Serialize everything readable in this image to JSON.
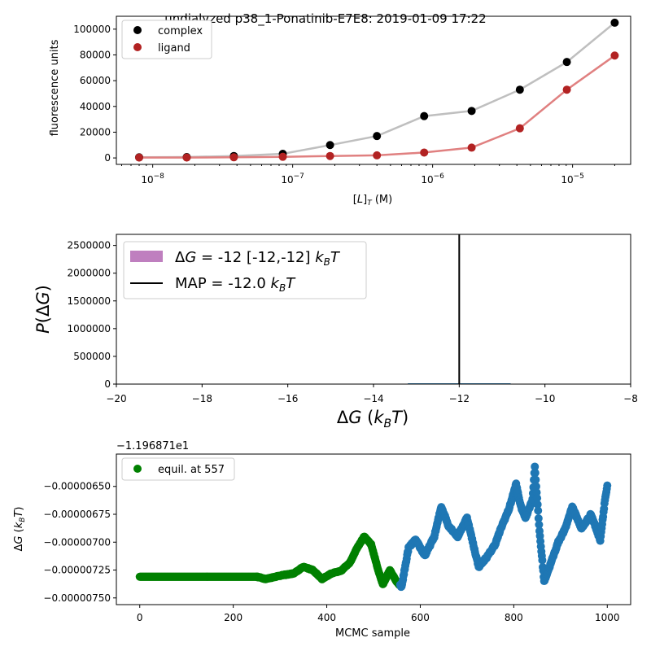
{
  "chart_data": [
    {
      "type": "line",
      "title": "undialyzed p38_1-Ponatinib-E7E8: 2019-01-09 17:22",
      "xlabel": "[L]T (M)",
      "ylabel": "fluorescence units",
      "xscale": "log",
      "xlim": [
        5.5e-09,
        2.6e-05
      ],
      "ylim": [
        -5000,
        110000
      ],
      "x_ticks": [
        {
          "v": 1e-08,
          "label": "10-8"
        },
        {
          "v": 1e-07,
          "label": "10-7"
        },
        {
          "v": 1e-06,
          "label": "10-6"
        },
        {
          "v": 1e-05,
          "label": "10-5"
        }
      ],
      "y_ticks": [
        0,
        20000,
        40000,
        60000,
        80000,
        100000
      ],
      "legend": [
        "complex",
        "ligand"
      ],
      "legend_position": "top-left",
      "x": [
        8e-09,
        1.75e-08,
        3.8e-08,
        8.5e-08,
        1.85e-07,
        4e-07,
        8.7e-07,
        1.9e-06,
        4.2e-06,
        9.1e-06,
        2e-05
      ],
      "series": [
        {
          "name": "complex",
          "color": "#000000",
          "line_color": "#bfbfbf",
          "values": [
            500,
            700,
            1500,
            3200,
            10000,
            17000,
            32500,
            36500,
            53000,
            74500,
            105000
          ]
        },
        {
          "name": "ligand",
          "color": "#b22222",
          "line_color": "#e08080",
          "values": [
            300,
            300,
            500,
            900,
            1500,
            2000,
            4200,
            8000,
            23000,
            53000,
            79500
          ]
        }
      ]
    },
    {
      "type": "area",
      "title": "",
      "xlabel": "ΔG (kBT)",
      "ylabel": "P(ΔG)",
      "xlim": [
        -20,
        -8
      ],
      "ylim": [
        0,
        2700000
      ],
      "x_ticks": [
        -20,
        -18,
        -16,
        -14,
        -12,
        -10,
        -8
      ],
      "y_ticks": [
        0,
        500000,
        1000000,
        1500000,
        2000000,
        2500000
      ],
      "posterior_range": [
        -13.2,
        -10.8
      ],
      "map_value": -12.0,
      "legend": [
        {
          "label": "ΔG =  -12 [-12,-12] kBT",
          "color": "#bf7fbf"
        },
        {
          "label": "MAP = -12.0 kBT",
          "color": "#000000"
        }
      ],
      "legend_position": "top-left"
    },
    {
      "type": "scatter",
      "title": "",
      "offset_label": "−1.196871e1",
      "xlabel": "MCMC sample",
      "ylabel": "ΔG (kBT)",
      "xlim": [
        -50,
        1050
      ],
      "ylim": [
        -7.56e-06,
        -6.21e-06
      ],
      "x_ticks": [
        0,
        200,
        400,
        600,
        800,
        1000
      ],
      "y_ticks": [
        {
          "v": -6.5e-06,
          "label": "−0.00000650"
        },
        {
          "v": -6.75e-06,
          "label": "−0.00000675"
        },
        {
          "v": -7e-06,
          "label": "−0.00000700"
        },
        {
          "v": -7.25e-06,
          "label": "−0.00000725"
        },
        {
          "v": -7.5e-06,
          "label": "−0.00000750"
        }
      ],
      "equil_index": 557,
      "legend": [
        "equil. at 557"
      ],
      "legend_position": "top-left",
      "colors": {
        "equil": "#008000",
        "post": "#1f77b4"
      },
      "trace_keypoints": [
        [
          0,
          -7.31e-06
        ],
        [
          150,
          -7.31e-06
        ],
        [
          250,
          -7.31e-06
        ],
        [
          270,
          -7.33e-06
        ],
        [
          300,
          -7.3e-06
        ],
        [
          330,
          -7.28e-06
        ],
        [
          350,
          -7.22e-06
        ],
        [
          370,
          -7.25e-06
        ],
        [
          390,
          -7.33e-06
        ],
        [
          410,
          -7.28e-06
        ],
        [
          430,
          -7.26e-06
        ],
        [
          450,
          -7.18e-06
        ],
        [
          465,
          -7.05e-06
        ],
        [
          480,
          -6.95e-06
        ],
        [
          495,
          -7.02e-06
        ],
        [
          510,
          -7.25e-06
        ],
        [
          520,
          -7.38e-06
        ],
        [
          535,
          -7.25e-06
        ],
        [
          550,
          -7.36e-06
        ],
        [
          560,
          -7.4e-06
        ],
        [
          575,
          -7.05e-06
        ],
        [
          590,
          -6.98e-06
        ],
        [
          610,
          -7.12e-06
        ],
        [
          630,
          -6.95e-06
        ],
        [
          645,
          -6.68e-06
        ],
        [
          660,
          -6.85e-06
        ],
        [
          680,
          -6.95e-06
        ],
        [
          700,
          -6.78e-06
        ],
        [
          715,
          -7.05e-06
        ],
        [
          725,
          -7.22e-06
        ],
        [
          745,
          -7.12e-06
        ],
        [
          760,
          -7.02e-06
        ],
        [
          775,
          -6.85e-06
        ],
        [
          790,
          -6.7e-06
        ],
        [
          805,
          -6.48e-06
        ],
        [
          815,
          -6.68e-06
        ],
        [
          825,
          -6.78e-06
        ],
        [
          840,
          -6.62e-06
        ],
        [
          845,
          -6.32e-06
        ],
        [
          855,
          -6.9e-06
        ],
        [
          865,
          -7.35e-06
        ],
        [
          880,
          -7.18e-06
        ],
        [
          895,
          -7e-06
        ],
        [
          910,
          -6.88e-06
        ],
        [
          925,
          -6.68e-06
        ],
        [
          945,
          -6.88e-06
        ],
        [
          965,
          -6.75e-06
        ],
        [
          985,
          -6.98e-06
        ],
        [
          995,
          -6.62e-06
        ],
        [
          1000,
          -6.5e-06
        ]
      ]
    }
  ]
}
